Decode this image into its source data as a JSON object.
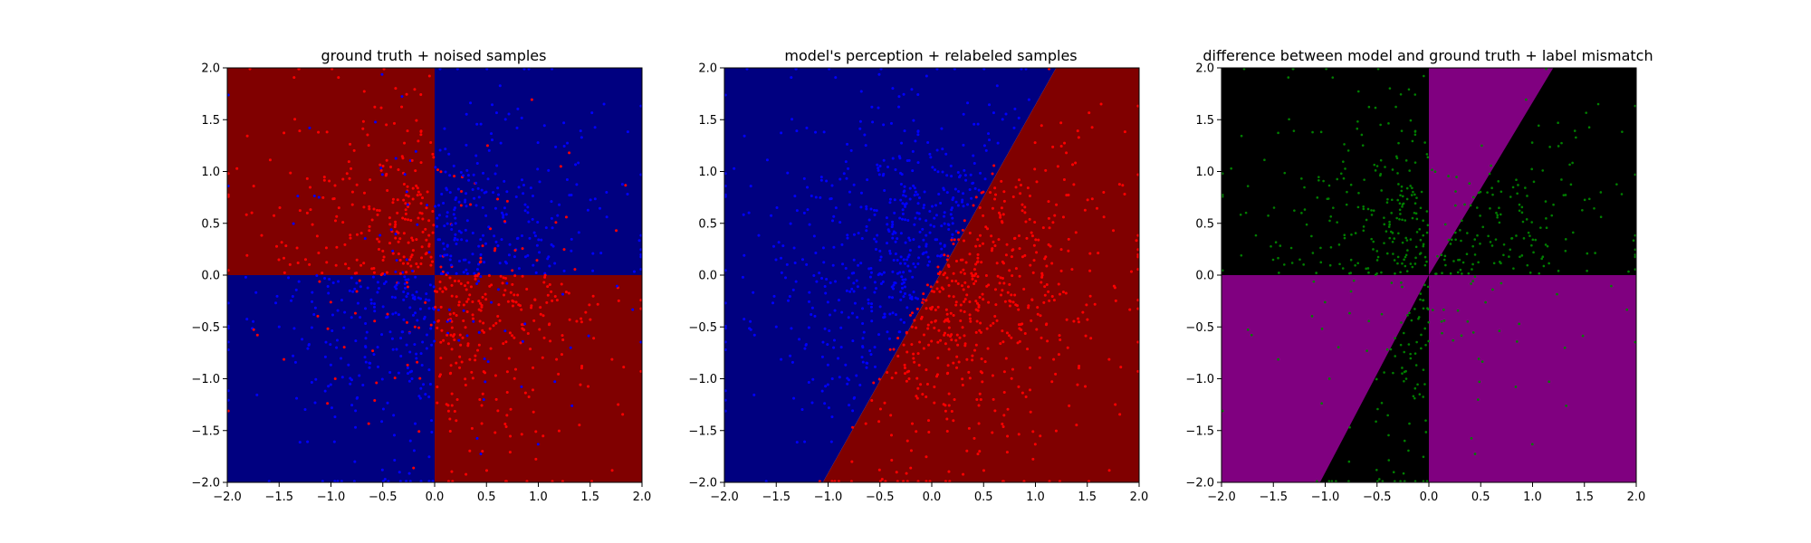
{
  "colors": {
    "region_red": "#800000",
    "region_blue": "#000080",
    "point_red": "#ff0000",
    "point_blue": "#0000ff",
    "diff_purple": "#800080",
    "diff_black": "#000000",
    "mismatch_green": "#008000"
  },
  "chart_data": [
    {
      "type": "scatter",
      "title": "ground truth + noised samples",
      "xlim": [
        -2.0,
        2.0
      ],
      "ylim": [
        -2.0,
        2.0
      ],
      "x_ticks": [
        "−2.0",
        "−1.5",
        "−1.0",
        "−0.5",
        "0.0",
        "0.5",
        "1.0",
        "1.5",
        "2.0"
      ],
      "y_ticks": [
        "−2.0",
        "−1.5",
        "−1.0",
        "−0.5",
        "0.0",
        "0.5",
        "1.0",
        "1.5",
        "2.0"
      ],
      "background": "quadrant regions: red where x<0,y>0 and x>0,y<0; blue where x>0,y>0 and x<0,y<0",
      "series": [
        {
          "color": "red",
          "description_points": "uniform samples in [-2,2]^2 labeled class 1 (mostly x*y<0) with label noise",
          "count_estimate": 500
        },
        {
          "color": "blue",
          "description_points": "uniform samples in [-2,2]^2 labeled class 0 (mostly x*y>0) with label noise",
          "count_estimate": 500
        }
      ],
      "grid": false
    },
    {
      "type": "scatter",
      "title": "model's perception + relabeled samples",
      "xlim": [
        -2.0,
        2.0
      ],
      "ylim": [
        -2.0,
        2.0
      ],
      "x_ticks": [
        "−2.0",
        "−1.5",
        "−1.0",
        "−0.5",
        "0.0",
        "0.5",
        "1.0",
        "1.5",
        "2.0"
      ],
      "y_ticks": [
        "−2.0",
        "−1.5",
        "−1.0",
        "−0.5",
        "0.0",
        "0.5",
        "1.0",
        "1.5",
        "2.0"
      ],
      "boundary_line": {
        "x1": -1.05,
        "y1": -2.0,
        "x2": 1.2,
        "y2": 2.0
      },
      "background": "blue left of line y = 1.78x, red right of it",
      "series": [
        {
          "color": "blue",
          "description_points": "samples left of model boundary"
        },
        {
          "color": "red",
          "description_points": "samples right of model boundary"
        }
      ],
      "grid": false
    },
    {
      "type": "scatter",
      "title": "difference between model and ground truth + label mismatch",
      "xlim": [
        -2.0,
        2.0
      ],
      "ylim": [
        -2.0,
        2.0
      ],
      "x_ticks": [
        "−2.0",
        "−1.5",
        "−1.0",
        "−0.5",
        "0.0",
        "0.5",
        "1.0",
        "1.5",
        "2.0"
      ],
      "y_ticks": [
        "−2.0",
        "−1.5",
        "−1.0",
        "−0.5",
        "0.0",
        "0.5",
        "1.0",
        "1.5",
        "2.0"
      ],
      "background": "purple where model and ground truth disagree, black where they agree",
      "series": [
        {
          "color": "green",
          "description_points": "samples whose relabel mismatches original label"
        }
      ],
      "grid": false
    }
  ]
}
